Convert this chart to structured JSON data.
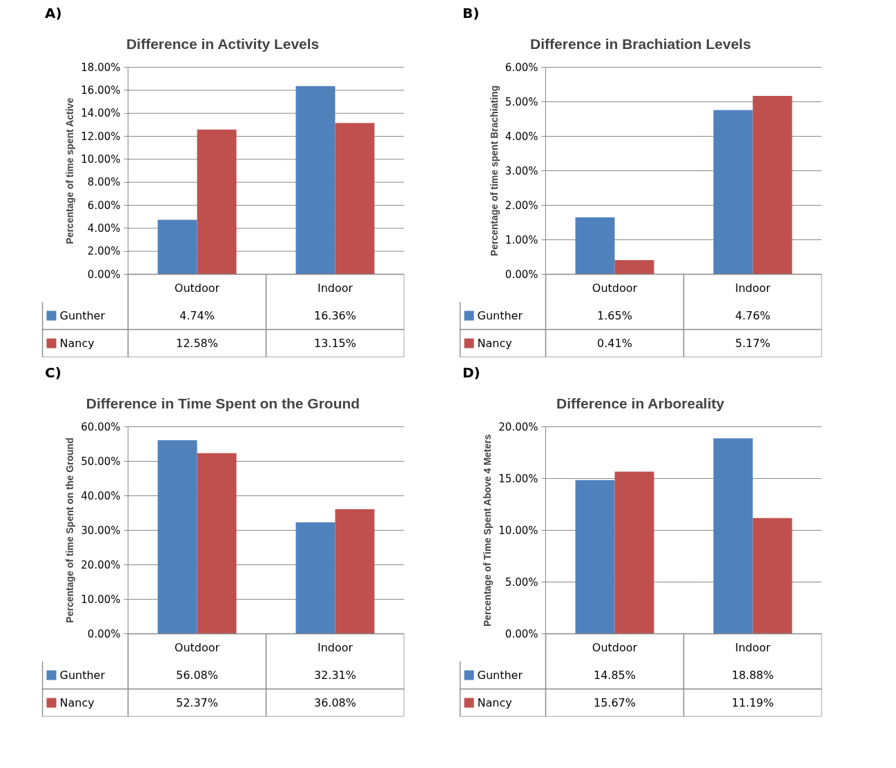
{
  "chart_data": [
    {
      "type": "bar",
      "annotations": [
        "A)"
      ],
      "title": "Difference in Activity Levels",
      "ylabel": "Percentage of time spent Active",
      "categories": [
        "Outdoor",
        "Indoor"
      ],
      "series": [
        {
          "name": "Gunther",
          "color": "#4f81bd",
          "values": [
            4.74,
            16.36
          ]
        },
        {
          "name": "Nancy",
          "color": "#c0504d",
          "values": [
            12.58,
            13.15
          ]
        }
      ],
      "ylim": [
        0,
        18
      ],
      "yticks": [
        {
          "value": 0,
          "label": "0.00%"
        },
        {
          "value": 2,
          "label": "2.00%"
        },
        {
          "value": 4,
          "label": "4.00%"
        },
        {
          "value": 6,
          "label": "6.00%"
        },
        {
          "value": 8,
          "label": "8.00%"
        },
        {
          "value": 10,
          "label": "10.00%"
        },
        {
          "value": 12,
          "label": "12.00%"
        },
        {
          "value": 14,
          "label": "14.00%"
        },
        {
          "value": 16,
          "label": "16.00%"
        },
        {
          "value": 18,
          "label": "18.00%"
        }
      ],
      "value_labels": [
        [
          "4.74%",
          "16.36%"
        ],
        [
          "12.58%",
          "13.15%"
        ]
      ],
      "grid": "y",
      "legend": "bottom left"
    },
    {
      "type": "bar",
      "annotations": [
        "B)"
      ],
      "title": "Difference in Brachiation Levels",
      "ylabel": "Percentage of time spent Brachiating",
      "categories": [
        "Outdoor",
        "Indoor"
      ],
      "series": [
        {
          "name": "Gunther",
          "color": "#4f81bd",
          "values": [
            1.65,
            4.76
          ]
        },
        {
          "name": "Nancy",
          "color": "#c0504d",
          "values": [
            0.41,
            5.17
          ]
        }
      ],
      "ylim": [
        0,
        6
      ],
      "yticks": [
        {
          "value": 0,
          "label": "0.00%"
        },
        {
          "value": 1,
          "label": "1.00%"
        },
        {
          "value": 2,
          "label": "2.00%"
        },
        {
          "value": 3,
          "label": "3.00%"
        },
        {
          "value": 4,
          "label": "4.00%"
        },
        {
          "value": 5,
          "label": "5.00%"
        },
        {
          "value": 6,
          "label": "6.00%"
        }
      ],
      "value_labels": [
        [
          "1.65%",
          "4.76%"
        ],
        [
          "0.41%",
          "5.17%"
        ]
      ],
      "grid": "y",
      "legend": "bottom left"
    },
    {
      "type": "bar",
      "annotations": [
        "C)"
      ],
      "title": "Difference in Time Spent on the Ground",
      "ylabel": "Percentage of time Spent on the Ground",
      "categories": [
        "Outdoor",
        "Indoor"
      ],
      "series": [
        {
          "name": "Gunther",
          "color": "#4f81bd",
          "values": [
            56.08,
            32.31
          ]
        },
        {
          "name": "Nancy",
          "color": "#c0504d",
          "values": [
            52.37,
            36.08
          ]
        }
      ],
      "ylim": [
        0,
        60
      ],
      "yticks": [
        {
          "value": 0,
          "label": "0.00%"
        },
        {
          "value": 10,
          "label": "10.00%"
        },
        {
          "value": 20,
          "label": "20.00%"
        },
        {
          "value": 30,
          "label": "30.00%"
        },
        {
          "value": 40,
          "label": "40.00%"
        },
        {
          "value": 50,
          "label": "50.00%"
        },
        {
          "value": 60,
          "label": "60.00%"
        }
      ],
      "value_labels": [
        [
          "56.08%",
          "32.31%"
        ],
        [
          "52.37%",
          "36.08%"
        ]
      ],
      "grid": "y",
      "legend": "bottom left"
    },
    {
      "type": "bar",
      "annotations": [
        "D)"
      ],
      "title": "Difference in Arboreality",
      "ylabel": "Percentage of Time Spent Above 4 Meters",
      "categories": [
        "Outdoor",
        "Indoor"
      ],
      "series": [
        {
          "name": "Gunther",
          "color": "#4f81bd",
          "values": [
            14.85,
            18.88
          ]
        },
        {
          "name": "Nancy",
          "color": "#c0504d",
          "values": [
            15.67,
            11.19
          ]
        }
      ],
      "ylim": [
        0,
        20
      ],
      "yticks": [
        {
          "value": 0,
          "label": "0.00%"
        },
        {
          "value": 5,
          "label": "5.00%"
        },
        {
          "value": 10,
          "label": "10.00%"
        },
        {
          "value": 15,
          "label": "15.00%"
        },
        {
          "value": 20,
          "label": "20.00%"
        }
      ],
      "value_labels": [
        [
          "14.85%",
          "18.88%"
        ],
        [
          "15.67%",
          "11.19%"
        ]
      ],
      "grid": "y",
      "legend": "bottom left"
    }
  ]
}
